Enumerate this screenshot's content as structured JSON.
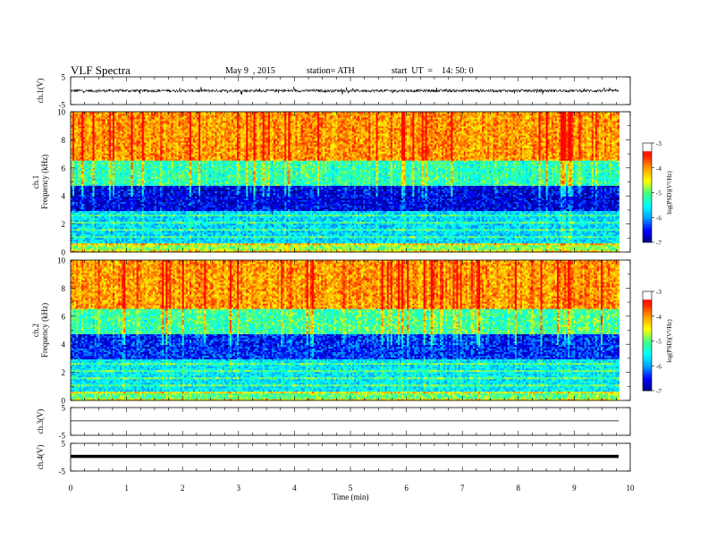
{
  "header": {
    "title": "VLF  Spectra",
    "date": "May 9  , 2015",
    "station": "station= ATH",
    "start": "start  UT  =    14: 50: 0"
  },
  "chart_data": [
    {
      "type": "line",
      "panel": "ch1-waveform",
      "ylabel": "ch.1(V)",
      "ylim": [
        -5,
        5
      ],
      "yticks": [
        "5",
        "-5"
      ],
      "description_series": "noisy waveform near 0 V with spikes up to about ±1.5 V",
      "xlim": [
        0,
        10
      ]
    },
    {
      "type": "heatmap",
      "panel": "ch1-spectrogram",
      "ylabel": "ch.1\nFrequency  (kHz)",
      "ylim": [
        0,
        10
      ],
      "yticks": [
        "0",
        "2",
        "4",
        "6",
        "8",
        "10"
      ],
      "xlim": [
        0,
        9.8
      ],
      "colorbar": {
        "label": "log(PSD)(V²/Hz)",
        "range": [
          -7,
          -3
        ],
        "ticks": [
          "-3",
          "-4",
          "-5",
          "-6",
          "-7"
        ]
      },
      "bands_logpsd": [
        {
          "f_min": 0,
          "f_max": 0.7,
          "level": -4.8
        },
        {
          "f_min": 0.7,
          "f_max": 3.0,
          "level": -5.7
        },
        {
          "f_min": 3.0,
          "f_max": 4.8,
          "level": -6.6
        },
        {
          "f_min": 4.8,
          "f_max": 6.5,
          "level": -5.2
        },
        {
          "f_min": 6.5,
          "f_max": 10,
          "level": -4.0
        }
      ]
    },
    {
      "type": "heatmap",
      "panel": "ch2-spectrogram",
      "ylabel": "ch.2\nFrequency  (kHz)",
      "ylim": [
        0,
        10
      ],
      "yticks": [
        "0",
        "2",
        "4",
        "6",
        "8",
        "10"
      ],
      "xlim": [
        0,
        9.8
      ],
      "colorbar": {
        "label": "log(PSD)(V²/Hz)",
        "range": [
          -7,
          -3
        ],
        "ticks": [
          "-3",
          "-4",
          "-5",
          "-6",
          "-7"
        ]
      },
      "bands_logpsd": [
        {
          "f_min": 0,
          "f_max": 0.7,
          "level": -5.0
        },
        {
          "f_min": 0.7,
          "f_max": 3.0,
          "level": -5.6
        },
        {
          "f_min": 3.0,
          "f_max": 4.8,
          "level": -6.4
        },
        {
          "f_min": 4.8,
          "f_max": 6.5,
          "level": -5.1
        },
        {
          "f_min": 6.5,
          "f_max": 10,
          "level": -4.0
        }
      ]
    },
    {
      "type": "line",
      "panel": "ch3-waveform",
      "ylabel": "ch.3(V)",
      "ylim": [
        -5,
        5
      ],
      "yticks": [
        "5",
        "-5"
      ],
      "constant_value": 0.2,
      "xlim": [
        0,
        9.8
      ]
    },
    {
      "type": "line",
      "panel": "ch4-waveform",
      "ylabel": "ch.4(V)",
      "ylim": [
        -5,
        5
      ],
      "yticks": [
        "5",
        "-5"
      ],
      "constant_value": 0.3,
      "xlim": [
        0,
        9.8
      ]
    }
  ],
  "xaxis": {
    "label": "Time  (min)",
    "ticks": [
      "0",
      "1",
      "2",
      "3",
      "4",
      "5",
      "6",
      "7",
      "8",
      "9",
      "10"
    ],
    "range": [
      0,
      10
    ]
  },
  "colors": {
    "jet_stops": [
      "#000080",
      "#0000ff",
      "#00a0ff",
      "#00ffff",
      "#40ff80",
      "#ffff00",
      "#ffa000",
      "#ff2000",
      "#ff0000",
      "#ffffff"
    ]
  }
}
